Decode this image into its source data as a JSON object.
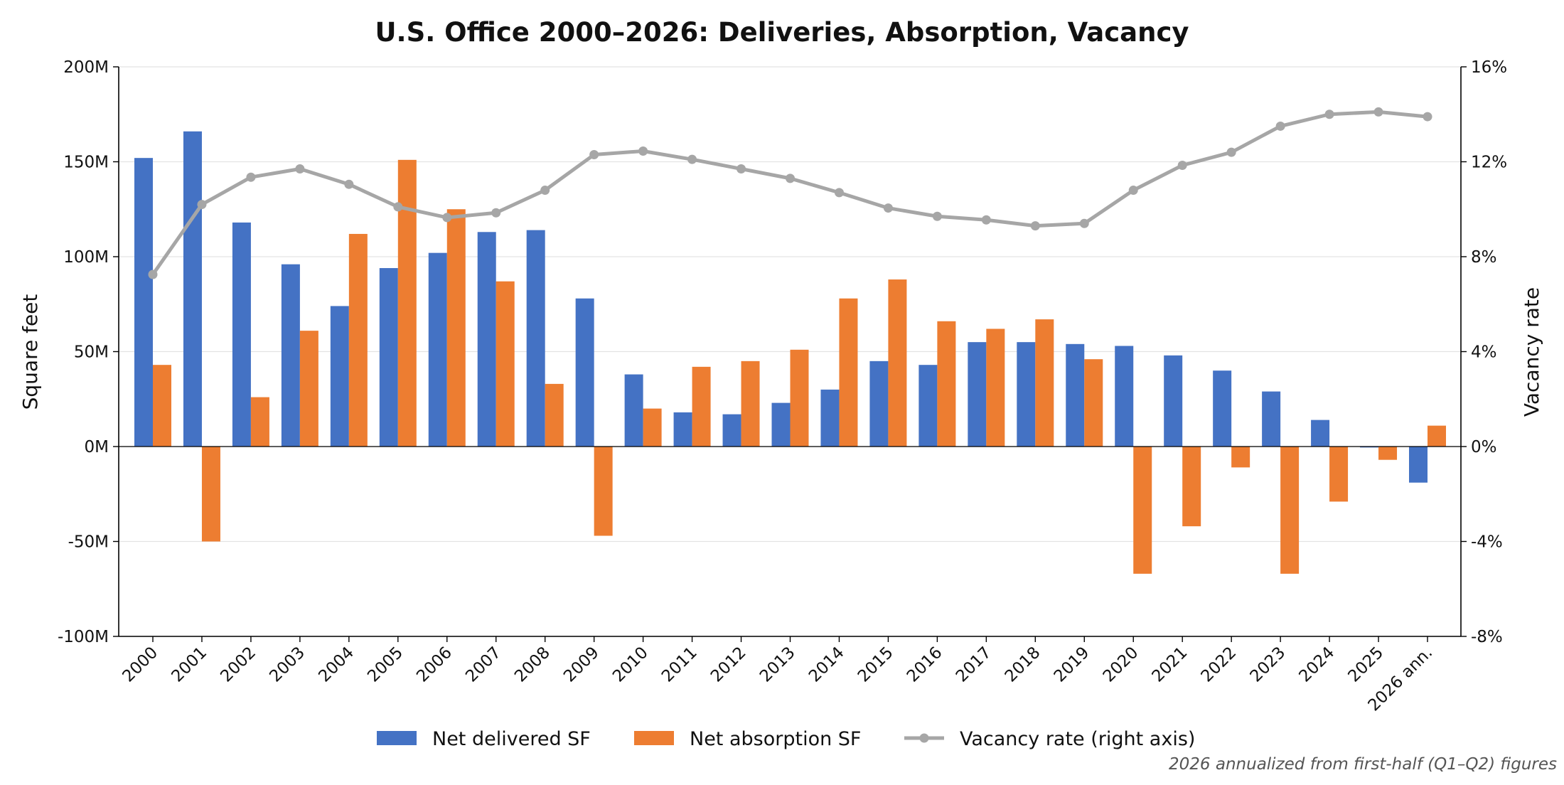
{
  "chart_data": {
    "type": "bar",
    "title": "U.S. Office 2000–2026: Deliveries, Absorption, Vacancy",
    "ylabel": "Square feet",
    "y2label": "Vacancy rate",
    "footnote": "2026 annualized from first-half (Q1–Q2) figures",
    "categories": [
      "2000",
      "2001",
      "2002",
      "2003",
      "2004",
      "2005",
      "2006",
      "2007",
      "2008",
      "2009",
      "2010",
      "2011",
      "2012",
      "2013",
      "2014",
      "2015",
      "2016",
      "2017",
      "2018",
      "2019",
      "2020",
      "2021",
      "2022",
      "2023",
      "2024",
      "2025",
      "2026 ann."
    ],
    "ylim": [
      -100,
      200
    ],
    "y2lim": [
      -8,
      16
    ],
    "yticks": [
      {
        "value": -100,
        "label": "-100M"
      },
      {
        "value": -50,
        "label": "-50M"
      },
      {
        "value": 0,
        "label": "0M"
      },
      {
        "value": 50,
        "label": "50M"
      },
      {
        "value": 100,
        "label": "100M"
      },
      {
        "value": 150,
        "label": "150M"
      },
      {
        "value": 200,
        "label": "200M"
      }
    ],
    "y2ticks": [
      {
        "value": -8,
        "label": "-8%"
      },
      {
        "value": -4,
        "label": "-4%"
      },
      {
        "value": 0,
        "label": "0%"
      },
      {
        "value": 4,
        "label": "4%"
      },
      {
        "value": 8,
        "label": "8%"
      },
      {
        "value": 12,
        "label": "12%"
      },
      {
        "value": 16,
        "label": "16%"
      }
    ],
    "grid": true,
    "legend_position": "bottom-center",
    "series": [
      {
        "name": "Net delivered SF",
        "kind": "bar",
        "axis": "left",
        "color": "#4472c4",
        "values": [
          152,
          166,
          118,
          96,
          74,
          94,
          102,
          113,
          114,
          78,
          38,
          18,
          17,
          23,
          30,
          45,
          43,
          55,
          55,
          54,
          53,
          48,
          40,
          29,
          14,
          -0.5,
          -19
        ]
      },
      {
        "name": "Net absorption SF",
        "kind": "bar",
        "axis": "left",
        "color": "#ed7d31",
        "values": [
          43,
          -50,
          26,
          61,
          112,
          151,
          125,
          87,
          33,
          -47,
          20,
          42,
          45,
          51,
          78,
          88,
          66,
          62,
          67,
          46,
          -67,
          -42,
          -11,
          -67,
          -29,
          -7,
          11
        ]
      },
      {
        "name": "Vacancy rate (right axis)",
        "kind": "line",
        "axis": "right",
        "color": "#a6a6a6",
        "values": [
          7.25,
          10.2,
          11.35,
          11.7,
          11.05,
          10.1,
          9.65,
          9.85,
          10.8,
          12.3,
          12.45,
          12.1,
          11.7,
          11.3,
          10.7,
          10.05,
          9.7,
          9.55,
          9.3,
          9.4,
          10.8,
          11.85,
          12.4,
          13.5,
          14.0,
          14.1,
          13.9
        ]
      }
    ]
  }
}
